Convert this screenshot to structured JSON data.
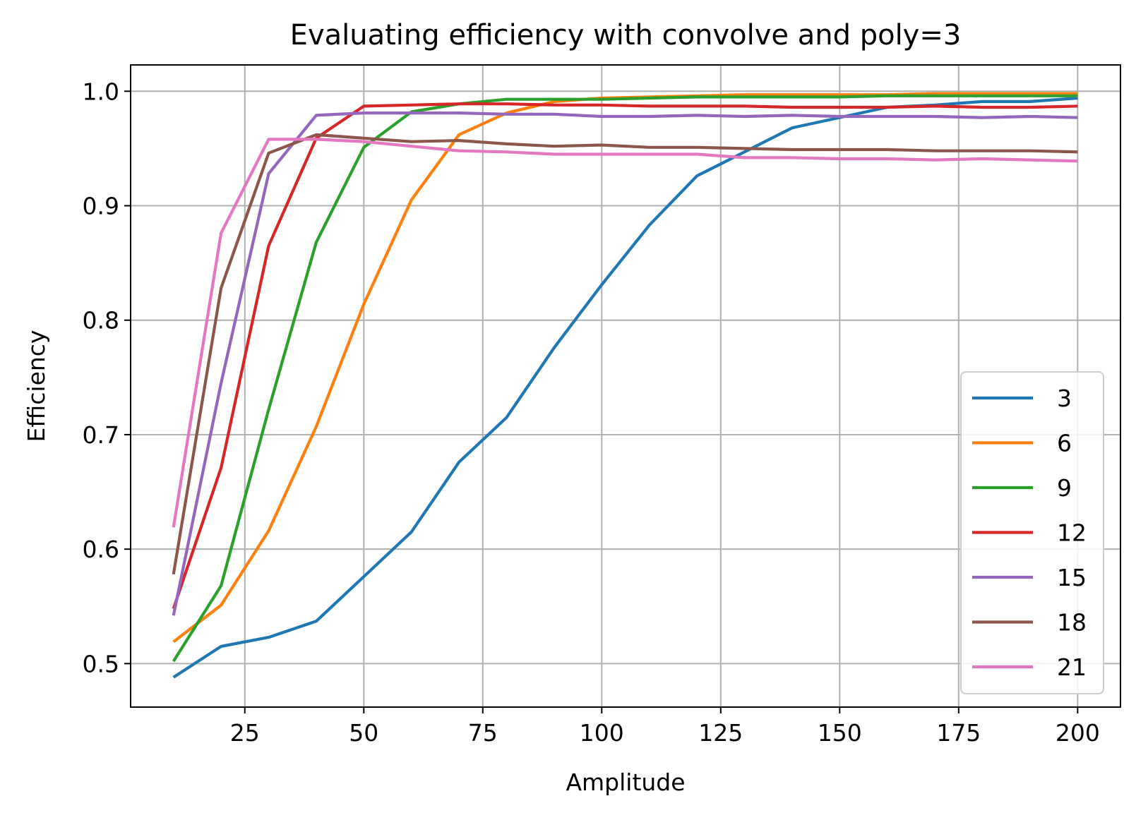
{
  "chart_data": {
    "type": "line",
    "title": "Evaluating efficiency with convolve and poly=3",
    "xlabel": "Amplitude",
    "ylabel": "Efficiency",
    "xlim": [
      1,
      209
    ],
    "ylim": [
      0.462,
      1.023
    ],
    "xticks": [
      25,
      50,
      75,
      100,
      125,
      150,
      175,
      200
    ],
    "yticks": [
      0.5,
      0.6,
      0.7,
      0.8,
      0.9,
      1.0
    ],
    "xtick_labels": [
      "25",
      "50",
      "75",
      "100",
      "125",
      "150",
      "175",
      "200"
    ],
    "ytick_labels": [
      "0.5",
      "0.6",
      "0.7",
      "0.8",
      "0.9",
      "1.0"
    ],
    "grid": true,
    "legend_position": "lower-right",
    "x": [
      10,
      20,
      30,
      40,
      50,
      60,
      70,
      80,
      90,
      100,
      110,
      120,
      130,
      140,
      150,
      160,
      170,
      180,
      190,
      200
    ],
    "series": [
      {
        "name": "3",
        "color": "#1f77b4",
        "values": [
          0.488,
          0.515,
          0.523,
          0.537,
          0.576,
          0.615,
          0.676,
          0.715,
          0.776,
          0.831,
          0.883,
          0.926,
          0.947,
          0.968,
          0.977,
          0.986,
          0.988,
          0.991,
          0.991,
          0.994
        ]
      },
      {
        "name": "6",
        "color": "#ff7f0e",
        "values": [
          0.519,
          0.551,
          0.616,
          0.707,
          0.814,
          0.905,
          0.962,
          0.981,
          0.991,
          0.994,
          0.995,
          0.996,
          0.997,
          0.997,
          0.997,
          0.997,
          0.998,
          0.998,
          0.998,
          0.998
        ]
      },
      {
        "name": "9",
        "color": "#2ca02c",
        "values": [
          0.502,
          0.568,
          0.722,
          0.868,
          0.951,
          0.982,
          0.989,
          0.993,
          0.993,
          0.993,
          0.994,
          0.995,
          0.995,
          0.995,
          0.995,
          0.996,
          0.996,
          0.996,
          0.996,
          0.996
        ]
      },
      {
        "name": "12",
        "color": "#d62728",
        "values": [
          0.548,
          0.671,
          0.865,
          0.959,
          0.987,
          0.988,
          0.989,
          0.989,
          0.988,
          0.988,
          0.987,
          0.987,
          0.987,
          0.986,
          0.986,
          0.986,
          0.987,
          0.986,
          0.986,
          0.987
        ]
      },
      {
        "name": "15",
        "color": "#9467bd",
        "values": [
          0.542,
          0.745,
          0.928,
          0.979,
          0.981,
          0.981,
          0.981,
          0.98,
          0.98,
          0.978,
          0.978,
          0.979,
          0.978,
          0.979,
          0.978,
          0.978,
          0.978,
          0.977,
          0.978,
          0.977
        ]
      },
      {
        "name": "18",
        "color": "#8c564b",
        "values": [
          0.578,
          0.828,
          0.946,
          0.962,
          0.959,
          0.956,
          0.957,
          0.954,
          0.952,
          0.953,
          0.951,
          0.951,
          0.95,
          0.949,
          0.949,
          0.949,
          0.948,
          0.948,
          0.948,
          0.947
        ]
      },
      {
        "name": "21",
        "color": "#e377c2",
        "values": [
          0.619,
          0.876,
          0.958,
          0.958,
          0.956,
          0.952,
          0.948,
          0.947,
          0.945,
          0.945,
          0.945,
          0.945,
          0.942,
          0.942,
          0.941,
          0.941,
          0.94,
          0.941,
          0.94,
          0.939
        ]
      }
    ]
  }
}
